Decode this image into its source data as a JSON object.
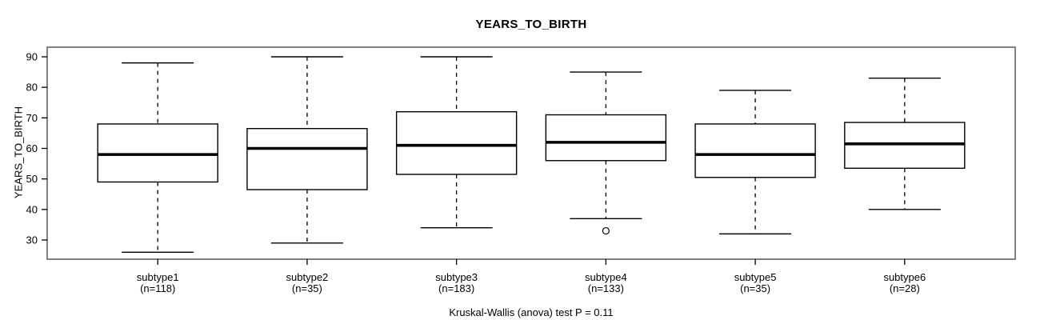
{
  "chart_data": {
    "type": "boxplot",
    "title": "YEARS_TO_BIRTH",
    "ylabel": "YEARS_TO_BIRTH",
    "footer": "Kruskal-Wallis (anova) test P = 0.11",
    "y_ticks": [
      30,
      40,
      50,
      60,
      70,
      80,
      90
    ],
    "ylim": [
      23.4,
      92.6
    ],
    "grid": false,
    "frame_color": "#808080",
    "box_color": "#000000",
    "fill_color": "#ffffff",
    "groups": [
      {
        "label": "subtype1",
        "n_label": "(n=118)",
        "n": 118,
        "whisker_low": 26,
        "q1": 49,
        "median": 58,
        "q3": 68,
        "whisker_high": 88,
        "outliers": []
      },
      {
        "label": "subtype2",
        "n_label": "(n=35)",
        "n": 35,
        "whisker_low": 29,
        "q1": 46.5,
        "median": 60,
        "q3": 66.5,
        "whisker_high": 90,
        "outliers": []
      },
      {
        "label": "subtype3",
        "n_label": "(n=183)",
        "n": 183,
        "whisker_low": 34,
        "q1": 51.5,
        "median": 61,
        "q3": 72,
        "whisker_high": 90,
        "outliers": []
      },
      {
        "label": "subtype4",
        "n_label": "(n=133)",
        "n": 133,
        "whisker_low": 37,
        "q1": 56,
        "median": 62,
        "q3": 71,
        "whisker_high": 85,
        "outliers": [
          33
        ]
      },
      {
        "label": "subtype5",
        "n_label": "(n=35)",
        "n": 35,
        "whisker_low": 32,
        "q1": 50.5,
        "median": 58,
        "q3": 68,
        "whisker_high": 79,
        "outliers": []
      },
      {
        "label": "subtype6",
        "n_label": "(n=28)",
        "n": 28,
        "whisker_low": 40,
        "q1": 53.5,
        "median": 61.5,
        "q3": 68.5,
        "whisker_high": 83,
        "outliers": []
      }
    ]
  }
}
